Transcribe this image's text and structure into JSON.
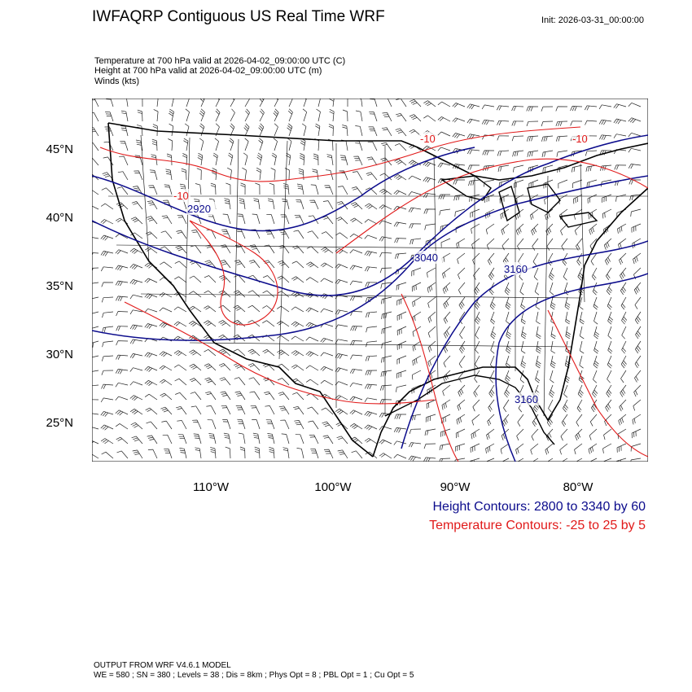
{
  "title": "IWFAQRP Contiguous US Real Time WRF",
  "init": "Init: 2026-03-31_00:00:00",
  "subtitle_lines": [
    "Temperature at 700 hPa valid at 2026-04-02_09:00:00 UTC   (C)",
    "Height at 700 hPa valid at 2026-04-02_09:00:00 UTC   (m)",
    "Winds   (kts)"
  ],
  "axes": {
    "lat_labels": [
      "45°N",
      "40°N",
      "35°N",
      "30°N",
      "25°N"
    ],
    "lon_labels": [
      "110°W",
      "100°W",
      "90°W",
      "80°W"
    ],
    "lat_range": [
      22.2,
      48.6
    ],
    "lon_range": [
      -119.8,
      -74.4
    ]
  },
  "contour_labels": {
    "height": [
      "2920",
      "3040",
      "3160",
      "3160"
    ],
    "temperature": [
      "-10",
      "-10",
      "-10"
    ]
  },
  "legend": {
    "height": "Height Contours: 2800 to 3340 by 60",
    "temperature": "Temperature Contours: -25 to 25 by 5"
  },
  "footer": {
    "line1": "OUTPUT FROM WRF V4.6.1 MODEL",
    "line2": "WE = 580 ; SN = 380 ; Levels = 38 ; Dis = 8km ; Phys Opt = 8 ; PBL Opt = 1 ; Cu Opt = 5"
  },
  "colors": {
    "height": "#0b0b8c",
    "temperature": "#e11a1a",
    "borders": "#000000"
  }
}
